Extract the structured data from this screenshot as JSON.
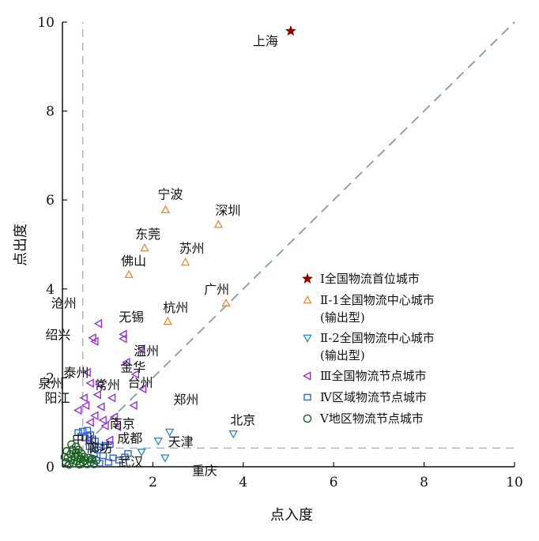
{
  "chart_data": {
    "type": "scatter",
    "xlabel": "点入度",
    "ylabel": "点出度",
    "xlim": [
      0,
      10
    ],
    "ylim": [
      0,
      10
    ],
    "xticks": [
      "2",
      "4",
      "6",
      "8",
      "10"
    ],
    "yticks": [
      "0",
      "2",
      "4",
      "6",
      "8",
      "10"
    ],
    "grid": false,
    "legend_position": "right",
    "reference_lines": {
      "diagonal": "y = x",
      "vertical_x": 0.45,
      "horizontal_y": 0.42
    },
    "series": [
      {
        "name": "Ⅰ全国物流首位城市",
        "legend": [
          "Ⅰ全国物流首位城市"
        ],
        "marker": "star",
        "color": "#8b0000",
        "points": [
          {
            "label": "上海",
            "x": 5.05,
            "y": 9.8
          }
        ]
      },
      {
        "name": "Ⅱ-1全国物流中心城市(输出型)",
        "legend": [
          "Ⅱ-1全国物流中心城市",
          "(输出型)"
        ],
        "marker": "triangle-up",
        "color": "#e69138",
        "points": [
          {
            "label": "宁波",
            "x": 2.28,
            "y": 5.78
          },
          {
            "label": "深圳",
            "x": 3.45,
            "y": 5.45
          },
          {
            "label": "东莞",
            "x": 1.82,
            "y": 4.92
          },
          {
            "label": "苏州",
            "x": 2.72,
            "y": 4.6
          },
          {
            "label": "佛山",
            "x": 1.47,
            "y": 4.32
          },
          {
            "label": "广州",
            "x": 3.62,
            "y": 3.68
          },
          {
            "label": "杭州",
            "x": 2.33,
            "y": 3.27
          }
        ]
      },
      {
        "name": "Ⅱ-2全国物流中心城市(输出型)",
        "legend": [
          "Ⅱ-2全国物流中心城市",
          "(输出型)"
        ],
        "marker": "triangle-down",
        "color": "#3c8dbc",
        "points": [
          {
            "label": "北京",
            "x": 3.78,
            "y": 0.74
          },
          {
            "label": "天津",
            "x": 2.37,
            "y": 0.78
          },
          {
            "label": "成都",
            "x": 2.12,
            "y": 0.58
          },
          {
            "label": "重庆",
            "x": 2.27,
            "y": 0.2
          },
          {
            "label": "武汉",
            "x": 1.75,
            "y": 0.33
          }
        ]
      },
      {
        "name": "Ⅲ全国物流节点城市",
        "legend": [
          "Ⅲ全国物流节点城市"
        ],
        "marker": "triangle-left",
        "color": "#9932cc",
        "points": [
          {
            "label": "沧州",
            "x": 0.8,
            "y": 3.22
          },
          {
            "label": "无锡",
            "x": 1.35,
            "y": 2.98
          },
          {
            "label": "",
            "x": 1.35,
            "y": 2.88
          },
          {
            "label": "温州",
            "x": 1.75,
            "y": 2.65
          },
          {
            "label": "绍兴",
            "x": 0.67,
            "y": 2.9
          },
          {
            "label": "",
            "x": 0.72,
            "y": 2.82
          },
          {
            "label": "金华",
            "x": 1.42,
            "y": 2.35
          },
          {
            "label": "台州",
            "x": 1.62,
            "y": 2.08
          },
          {
            "label": "",
            "x": 1.78,
            "y": 1.75
          },
          {
            "label": "泰州",
            "x": 0.55,
            "y": 2.12
          },
          {
            "label": "泉州",
            "x": 0.62,
            "y": 1.88
          },
          {
            "label": "常州",
            "x": 0.82,
            "y": 1.85
          },
          {
            "label": "阳江",
            "x": 0.48,
            "y": 1.55
          },
          {
            "label": "",
            "x": 0.78,
            "y": 1.62
          },
          {
            "label": "",
            "x": 1.1,
            "y": 1.55
          },
          {
            "label": "郑州",
            "x": 1.58,
            "y": 1.38
          },
          {
            "label": "",
            "x": 0.52,
            "y": 1.38
          },
          {
            "label": "",
            "x": 0.86,
            "y": 1.35
          },
          {
            "label": "",
            "x": 0.35,
            "y": 1.27
          },
          {
            "label": "南京",
            "x": 1.15,
            "y": 1.12
          },
          {
            "label": "",
            "x": 0.9,
            "y": 1.05
          },
          {
            "label": "",
            "x": 0.72,
            "y": 1.15
          },
          {
            "label": "",
            "x": 0.62,
            "y": 1.0
          },
          {
            "label": "",
            "x": 0.95,
            "y": 0.92
          },
          {
            "label": "",
            "x": 1.22,
            "y": 0.9
          },
          {
            "label": "",
            "x": 1.05,
            "y": 0.6
          },
          {
            "label": "",
            "x": 0.6,
            "y": 0.62
          }
        ]
      },
      {
        "name": "Ⅳ区域物流节点城市",
        "legend": [
          "Ⅳ区域物流节点城市"
        ],
        "marker": "square",
        "color": "#3366cc",
        "points": [
          {
            "label": "中山",
            "x": 0.35,
            "y": 0.77
          },
          {
            "label": "",
            "x": 0.45,
            "y": 0.8
          },
          {
            "label": "",
            "x": 0.55,
            "y": 0.82
          },
          {
            "label": "",
            "x": 0.62,
            "y": 0.72
          },
          {
            "label": "",
            "x": 0.5,
            "y": 0.65
          },
          {
            "label": "廊坊",
            "x": 0.72,
            "y": 0.58
          },
          {
            "label": "",
            "x": 0.85,
            "y": 0.45
          },
          {
            "label": "",
            "x": 0.95,
            "y": 0.48
          },
          {
            "label": "",
            "x": 1.05,
            "y": 0.5
          },
          {
            "label": "",
            "x": 0.78,
            "y": 0.38
          },
          {
            "label": "",
            "x": 0.7,
            "y": 0.3
          },
          {
            "label": "",
            "x": 0.9,
            "y": 0.25
          },
          {
            "label": "",
            "x": 1.12,
            "y": 0.2
          },
          {
            "label": "",
            "x": 1.25,
            "y": 0.15
          },
          {
            "label": "",
            "x": 1.38,
            "y": 0.22
          },
          {
            "label": "",
            "x": 1.45,
            "y": 0.3
          },
          {
            "label": "",
            "x": 0.6,
            "y": 0.45
          },
          {
            "label": "",
            "x": 0.65,
            "y": 0.15
          },
          {
            "label": "",
            "x": 0.82,
            "y": 0.08
          },
          {
            "label": "",
            "x": 1.02,
            "y": 0.1
          }
        ]
      },
      {
        "name": "Ⅴ地区物流节点城市",
        "legend": [
          "Ⅴ地区物流节点城市"
        ],
        "marker": "circle",
        "color": "#1b5e20",
        "points": [
          {
            "label": "",
            "x": 0.08,
            "y": 0.1
          },
          {
            "label": "",
            "x": 0.12,
            "y": 0.2
          },
          {
            "label": "",
            "x": 0.15,
            "y": 0.05
          },
          {
            "label": "",
            "x": 0.18,
            "y": 0.28
          },
          {
            "label": "",
            "x": 0.2,
            "y": 0.15
          },
          {
            "label": "",
            "x": 0.22,
            "y": 0.38
          },
          {
            "label": "",
            "x": 0.25,
            "y": 0.08
          },
          {
            "label": "",
            "x": 0.28,
            "y": 0.22
          },
          {
            "label": "",
            "x": 0.3,
            "y": 0.32
          },
          {
            "label": "",
            "x": 0.32,
            "y": 0.12
          },
          {
            "label": "",
            "x": 0.35,
            "y": 0.25
          },
          {
            "label": "",
            "x": 0.38,
            "y": 0.05
          },
          {
            "label": "",
            "x": 0.4,
            "y": 0.18
          },
          {
            "label": "",
            "x": 0.42,
            "y": 0.3
          },
          {
            "label": "",
            "x": 0.45,
            "y": 0.1
          },
          {
            "label": "",
            "x": 0.48,
            "y": 0.22
          },
          {
            "label": "",
            "x": 0.5,
            "y": 0.14
          },
          {
            "label": "",
            "x": 0.55,
            "y": 0.06
          },
          {
            "label": "",
            "x": 0.58,
            "y": 0.2
          },
          {
            "label": "",
            "x": 0.62,
            "y": 0.1
          },
          {
            "label": "",
            "x": 0.66,
            "y": 0.18
          },
          {
            "label": "",
            "x": 0.7,
            "y": 0.06
          },
          {
            "label": "",
            "x": 0.75,
            "y": 0.14
          },
          {
            "label": "",
            "x": 0.2,
            "y": 0.5
          },
          {
            "label": "",
            "x": 0.1,
            "y": 0.35
          },
          {
            "label": "",
            "x": 0.05,
            "y": 0.22
          },
          {
            "label": "",
            "x": 0.3,
            "y": 0.45
          },
          {
            "label": "",
            "x": 0.35,
            "y": 0.38
          }
        ]
      }
    ]
  }
}
